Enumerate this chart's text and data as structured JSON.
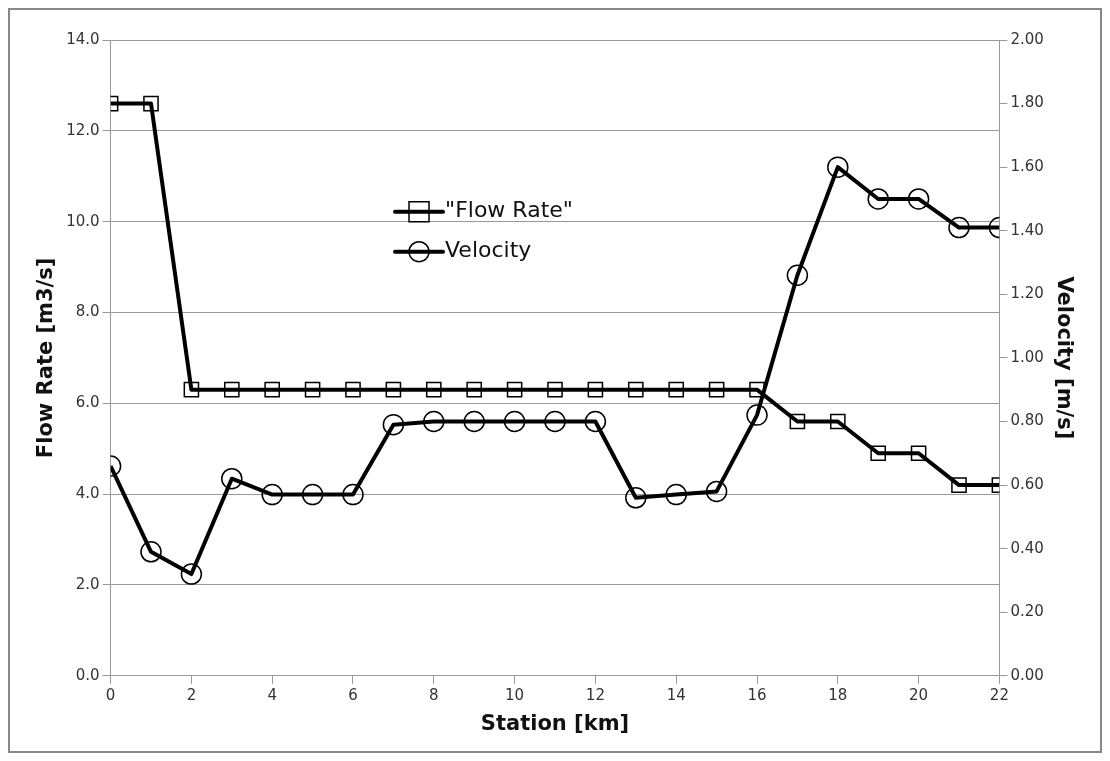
{
  "chart_data": {
    "type": "line",
    "xlabel": "Station [km]",
    "ylabel": "Flow Rate [m3/s]",
    "y2label": "Velocity [m/s]",
    "x": [
      0,
      1,
      2,
      3,
      4,
      5,
      6,
      7,
      8,
      9,
      10,
      11,
      12,
      13,
      14,
      15,
      16,
      17,
      18,
      19,
      20,
      21,
      22
    ],
    "series": [
      {
        "name": "\"Flow Rate\"",
        "color": "#000000",
        "marker": "square",
        "values": [
          12.6,
          12.6,
          6.3,
          6.3,
          6.3,
          6.3,
          6.3,
          6.3,
          6.3,
          6.3,
          6.3,
          6.3,
          6.3,
          6.3,
          6.3,
          6.3,
          6.3,
          5.6,
          5.6,
          4.9,
          4.9,
          4.2,
          4.2
        ]
      },
      {
        "name": "Velocity",
        "color": "#000000",
        "marker": "circle",
        "axis": "y2",
        "values": [
          0.66,
          0.39,
          0.32,
          0.62,
          0.57,
          0.57,
          0.57,
          0.79,
          0.8,
          0.8,
          0.8,
          0.8,
          0.8,
          0.56,
          0.57,
          0.58,
          0.82,
          1.26,
          1.6,
          1.5,
          1.5,
          1.41,
          1.41
        ]
      }
    ],
    "xlim": [
      0,
      22
    ],
    "xticks": [
      0,
      2,
      4,
      6,
      8,
      10,
      12,
      14,
      16,
      18,
      20,
      22
    ],
    "ylim": [
      0,
      14
    ],
    "yticks": [
      {
        "value": 0,
        "label": "0.0"
      },
      {
        "value": 2,
        "label": "2.0"
      },
      {
        "value": 4,
        "label": "4.0"
      },
      {
        "value": 6,
        "label": "6.0"
      },
      {
        "value": 8,
        "label": "8.0"
      },
      {
        "value": 10,
        "label": "10.0"
      },
      {
        "value": 12,
        "label": "12.0"
      },
      {
        "value": 14,
        "label": "14.0"
      }
    ],
    "y2lim": [
      0,
      2
    ],
    "y2ticks": [
      {
        "value": 0,
        "label": "0.00"
      },
      {
        "value": 0.2,
        "label": "0.20"
      },
      {
        "value": 0.4,
        "label": "0.40"
      },
      {
        "value": 0.6,
        "label": "0.60"
      },
      {
        "value": 0.8,
        "label": "0.80"
      },
      {
        "value": 1,
        "label": "1.00"
      },
      {
        "value": 1.2,
        "label": "1.20"
      },
      {
        "value": 1.4,
        "label": "1.40"
      },
      {
        "value": 1.6,
        "label": "1.60"
      },
      {
        "value": 1.8,
        "label": "1.80"
      },
      {
        "value": 2,
        "label": "2.00"
      }
    ],
    "grid": "y",
    "legend": "top",
    "line_style": "solid"
  }
}
